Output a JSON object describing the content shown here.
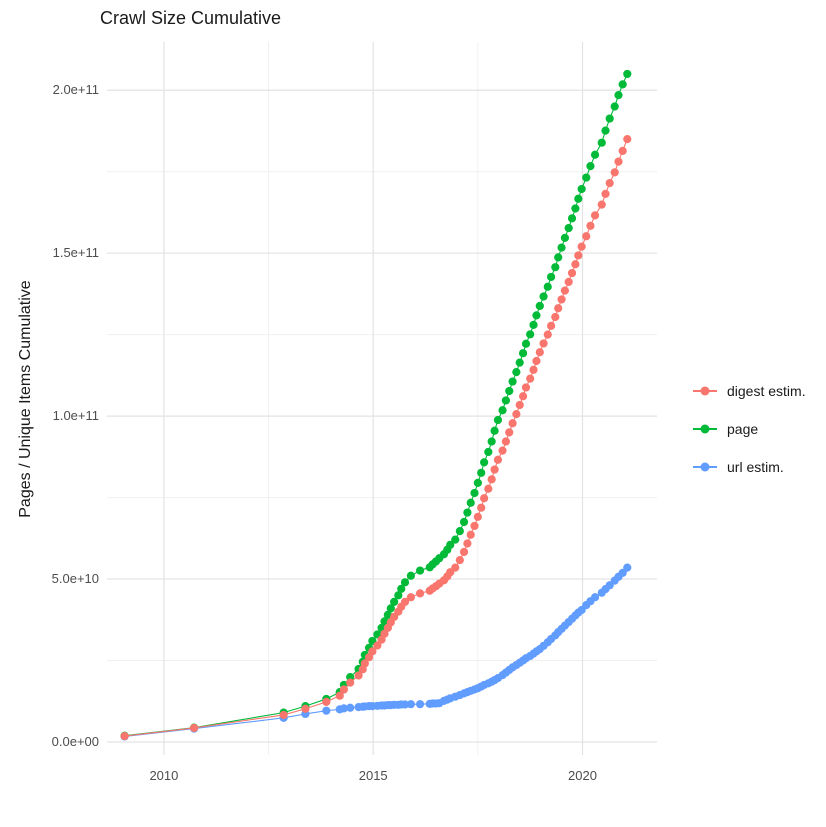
{
  "title": "Crawl Size Cumulative",
  "y_axis_title": "Pages / Unique Items Cumulative",
  "legend": {
    "position": "right",
    "items": [
      {
        "label": "digest estim.",
        "color": "#F8766D"
      },
      {
        "label": "page",
        "color": "#00BA38"
      },
      {
        "label": "url estim.",
        "color": "#619CFF"
      }
    ]
  },
  "chart_data": {
    "type": "scatter",
    "title": "Crawl Size Cumulative",
    "xlabel": "",
    "ylabel": "Pages / Unique Items Cumulative",
    "xlim": [
      2008.64,
      2021.78
    ],
    "ylim": [
      -4000000000.0,
      214800000000.0
    ],
    "grid": true,
    "legend_position": "right",
    "grid_color_major": "#e3e3e3",
    "grid_color_minor": "#f0f0f0",
    "x_ticks": [
      {
        "value": 2010,
        "label": "2010"
      },
      {
        "value": 2015,
        "label": "2015"
      },
      {
        "value": 2020,
        "label": "2020"
      }
    ],
    "x_minor_values": [
      2012.5,
      2017.5
    ],
    "y_ticks": [
      {
        "value": 0,
        "label": "0.0e+00"
      },
      {
        "value": 50000000000.0,
        "label": "5.0e+10"
      },
      {
        "value": 100000000000.0,
        "label": "1.0e+11"
      },
      {
        "value": 150000000000.0,
        "label": "1.5e+11"
      },
      {
        "value": 200000000000.0,
        "label": "2.0e+11"
      }
    ],
    "y_minor_values": [
      25000000000.0,
      75000000000.0,
      125000000000.0,
      175000000000.0
    ],
    "series": [
      {
        "name": "digest estim.",
        "color": "#F8766D",
        "points": [
          [
            2009.06,
            1800000000.0
          ],
          [
            2010.72,
            4300000000.0
          ],
          [
            2012.86,
            8300000000.0
          ],
          [
            2013.38,
            10200000000.0
          ],
          [
            2013.88,
            12300000000.0
          ],
          [
            2014.2,
            14200000000.0
          ],
          [
            2014.3,
            16100000000.0
          ],
          [
            2014.45,
            18200000000.0
          ],
          [
            2014.65,
            20400000000.0
          ],
          [
            2014.75,
            22300000000.0
          ],
          [
            2014.8,
            24100000000.0
          ],
          [
            2014.9,
            26000000000.0
          ],
          [
            2014.98,
            27800000000.0
          ],
          [
            2015.1,
            29600000000.0
          ],
          [
            2015.2,
            31400000000.0
          ],
          [
            2015.27,
            33200000000.0
          ],
          [
            2015.35,
            35000000000.0
          ],
          [
            2015.42,
            36700000000.0
          ],
          [
            2015.5,
            38400000000.0
          ],
          [
            2015.6,
            40000000000.0
          ],
          [
            2015.67,
            41500000000.0
          ],
          [
            2015.76,
            43000000000.0
          ],
          [
            2015.9,
            44400000000.0
          ],
          [
            2016.12,
            45600000000.0
          ],
          [
            2016.35,
            46400000000.0
          ],
          [
            2016.42,
            47100000000.0
          ],
          [
            2016.5,
            47800000000.0
          ],
          [
            2016.58,
            48600000000.0
          ],
          [
            2016.69,
            49600000000.0
          ],
          [
            2016.77,
            50800000000.0
          ],
          [
            2016.84,
            52100000000.0
          ],
          [
            2016.96,
            53500000000.0
          ],
          [
            2017.07,
            55800000000.0
          ],
          [
            2017.17,
            58300000000.0
          ],
          [
            2017.25,
            60900000000.0
          ],
          [
            2017.33,
            63600000000.0
          ],
          [
            2017.42,
            66300000000.0
          ],
          [
            2017.5,
            69100000000.0
          ],
          [
            2017.58,
            71900000000.0
          ],
          [
            2017.65,
            74800000000.0
          ],
          [
            2017.75,
            77700000000.0
          ],
          [
            2017.83,
            80600000000.0
          ],
          [
            2017.9,
            83600000000.0
          ],
          [
            2017.98,
            86600000000.0
          ],
          [
            2018.09,
            89400000000.0
          ],
          [
            2018.17,
            92200000000.0
          ],
          [
            2018.25,
            95000000000.0
          ],
          [
            2018.33,
            97800000000.0
          ],
          [
            2018.42,
            100600000000.0
          ],
          [
            2018.5,
            103400000000.0
          ],
          [
            2018.58,
            106100000000.0
          ],
          [
            2018.65,
            108800000000.0
          ],
          [
            2018.75,
            111500000000.0
          ],
          [
            2018.83,
            114200000000.0
          ],
          [
            2018.9,
            116900000000.0
          ],
          [
            2018.98,
            119600000000.0
          ],
          [
            2019.07,
            122300000000.0
          ],
          [
            2019.17,
            125000000000.0
          ],
          [
            2019.25,
            127700000000.0
          ],
          [
            2019.35,
            130400000000.0
          ],
          [
            2019.42,
            133100000000.0
          ],
          [
            2019.5,
            135800000000.0
          ],
          [
            2019.58,
            138500000000.0
          ],
          [
            2019.67,
            141200000000.0
          ],
          [
            2019.75,
            143900000000.0
          ],
          [
            2019.83,
            146600000000.0
          ],
          [
            2019.9,
            149300000000.0
          ],
          [
            2019.98,
            152000000000.0
          ],
          [
            2020.09,
            155200000000.0
          ],
          [
            2020.19,
            158400000000.0
          ],
          [
            2020.3,
            161600000000.0
          ],
          [
            2020.46,
            164900000000.0
          ],
          [
            2020.55,
            168200000000.0
          ],
          [
            2020.65,
            171500000000.0
          ],
          [
            2020.77,
            174800000000.0
          ],
          [
            2020.86,
            178100000000.0
          ],
          [
            2020.96,
            181400000000.0
          ],
          [
            2021.07,
            185000000000.0
          ]
        ]
      },
      {
        "name": "page",
        "color": "#00BA38",
        "points": [
          [
            2009.06,
            1900000000.0
          ],
          [
            2010.72,
            4400000000.0
          ],
          [
            2012.86,
            9000000000.0
          ],
          [
            2013.38,
            11000000000.0
          ],
          [
            2013.88,
            13200000000.0
          ],
          [
            2014.2,
            15300000000.0
          ],
          [
            2014.3,
            17500000000.0
          ],
          [
            2014.45,
            19900000000.0
          ],
          [
            2014.65,
            22400000000.0
          ],
          [
            2014.75,
            24600000000.0
          ],
          [
            2014.8,
            26700000000.0
          ],
          [
            2014.9,
            28900000000.0
          ],
          [
            2014.98,
            31000000000.0
          ],
          [
            2015.1,
            33000000000.0
          ],
          [
            2015.2,
            35000000000.0
          ],
          [
            2015.27,
            37000000000.0
          ],
          [
            2015.35,
            39000000000.0
          ],
          [
            2015.42,
            41000000000.0
          ],
          [
            2015.5,
            43000000000.0
          ],
          [
            2015.6,
            45000000000.0
          ],
          [
            2015.67,
            47000000000.0
          ],
          [
            2015.76,
            49000000000.0
          ],
          [
            2015.9,
            51000000000.0
          ],
          [
            2016.12,
            52600000000.0
          ],
          [
            2016.35,
            53600000000.0
          ],
          [
            2016.42,
            54500000000.0
          ],
          [
            2016.5,
            55400000000.0
          ],
          [
            2016.58,
            56400000000.0
          ],
          [
            2016.69,
            57600000000.0
          ],
          [
            2016.77,
            59000000000.0
          ],
          [
            2016.84,
            60500000000.0
          ],
          [
            2016.96,
            62100000000.0
          ],
          [
            2017.07,
            64700000000.0
          ],
          [
            2017.17,
            67500000000.0
          ],
          [
            2017.25,
            70400000000.0
          ],
          [
            2017.33,
            73400000000.0
          ],
          [
            2017.42,
            76400000000.0
          ],
          [
            2017.5,
            79500000000.0
          ],
          [
            2017.58,
            82600000000.0
          ],
          [
            2017.65,
            85800000000.0
          ],
          [
            2017.75,
            89000000000.0
          ],
          [
            2017.83,
            92200000000.0
          ],
          [
            2017.9,
            95500000000.0
          ],
          [
            2017.98,
            98800000000.0
          ],
          [
            2018.09,
            101800000000.0
          ],
          [
            2018.17,
            104800000000.0
          ],
          [
            2018.25,
            107700000000.0
          ],
          [
            2018.33,
            110600000000.0
          ],
          [
            2018.42,
            113500000000.0
          ],
          [
            2018.5,
            116400000000.0
          ],
          [
            2018.58,
            119300000000.0
          ],
          [
            2018.65,
            122200000000.0
          ],
          [
            2018.75,
            125100000000.0
          ],
          [
            2018.83,
            128000000000.0
          ],
          [
            2018.9,
            130900000000.0
          ],
          [
            2018.98,
            133800000000.0
          ],
          [
            2019.07,
            136700000000.0
          ],
          [
            2019.17,
            139700000000.0
          ],
          [
            2019.25,
            142700000000.0
          ],
          [
            2019.35,
            145700000000.0
          ],
          [
            2019.42,
            148700000000.0
          ],
          [
            2019.5,
            151700000000.0
          ],
          [
            2019.58,
            154700000000.0
          ],
          [
            2019.67,
            157700000000.0
          ],
          [
            2019.75,
            160700000000.0
          ],
          [
            2019.83,
            163700000000.0
          ],
          [
            2019.9,
            166700000000.0
          ],
          [
            2019.98,
            169700000000.0
          ],
          [
            2020.09,
            173200000000.0
          ],
          [
            2020.19,
            176700000000.0
          ],
          [
            2020.3,
            180200000000.0
          ],
          [
            2020.46,
            183900000000.0
          ],
          [
            2020.55,
            187600000000.0
          ],
          [
            2020.65,
            191300000000.0
          ],
          [
            2020.77,
            195000000000.0
          ],
          [
            2020.86,
            198500000000.0
          ],
          [
            2020.96,
            201800000000.0
          ],
          [
            2021.07,
            205000000000.0
          ]
        ]
      },
      {
        "name": "url estim.",
        "color": "#619CFF",
        "points": [
          [
            2009.06,
            1700000000.0
          ],
          [
            2010.72,
            4100000000.0
          ],
          [
            2012.86,
            7400000000.0
          ],
          [
            2013.38,
            8600000000.0
          ],
          [
            2013.88,
            9600000000.0
          ],
          [
            2014.2,
            10000000000.0
          ],
          [
            2014.3,
            10300000000.0
          ],
          [
            2014.45,
            10500000000.0
          ],
          [
            2014.65,
            10700000000.0
          ],
          [
            2014.75,
            10800000000.0
          ],
          [
            2014.8,
            10900000000.0
          ],
          [
            2014.9,
            11000000000.0
          ],
          [
            2014.98,
            11000000000.0
          ],
          [
            2015.1,
            11100000000.0
          ],
          [
            2015.2,
            11200000000.0
          ],
          [
            2015.27,
            11200000000.0
          ],
          [
            2015.35,
            11300000000.0
          ],
          [
            2015.42,
            11300000000.0
          ],
          [
            2015.5,
            11400000000.0
          ],
          [
            2015.6,
            11400000000.0
          ],
          [
            2015.67,
            11500000000.0
          ],
          [
            2015.76,
            11500000000.0
          ],
          [
            2015.9,
            11600000000.0
          ],
          [
            2016.12,
            11600000000.0
          ],
          [
            2016.35,
            11700000000.0
          ],
          [
            2016.42,
            11800000000.0
          ],
          [
            2016.5,
            11800000000.0
          ],
          [
            2016.58,
            11900000000.0
          ],
          [
            2016.69,
            12600000000.0
          ],
          [
            2016.77,
            13000000000.0
          ],
          [
            2016.84,
            13400000000.0
          ],
          [
            2016.96,
            13900000000.0
          ],
          [
            2017.07,
            14400000000.0
          ],
          [
            2017.17,
            14900000000.0
          ],
          [
            2017.25,
            15300000000.0
          ],
          [
            2017.33,
            15700000000.0
          ],
          [
            2017.42,
            16100000000.0
          ],
          [
            2017.5,
            16500000000.0
          ],
          [
            2017.58,
            17000000000.0
          ],
          [
            2017.65,
            17500000000.0
          ],
          [
            2017.75,
            18000000000.0
          ],
          [
            2017.83,
            18500000000.0
          ],
          [
            2017.9,
            19000000000.0
          ],
          [
            2017.98,
            19600000000.0
          ],
          [
            2018.09,
            20500000000.0
          ],
          [
            2018.17,
            21300000000.0
          ],
          [
            2018.25,
            22100000000.0
          ],
          [
            2018.33,
            22900000000.0
          ],
          [
            2018.42,
            23600000000.0
          ],
          [
            2018.5,
            24300000000.0
          ],
          [
            2018.58,
            25000000000.0
          ],
          [
            2018.65,
            25700000000.0
          ],
          [
            2018.75,
            26400000000.0
          ],
          [
            2018.83,
            27100000000.0
          ],
          [
            2018.9,
            27800000000.0
          ],
          [
            2018.98,
            28500000000.0
          ],
          [
            2019.07,
            29500000000.0
          ],
          [
            2019.17,
            30600000000.0
          ],
          [
            2019.25,
            31600000000.0
          ],
          [
            2019.35,
            32700000000.0
          ],
          [
            2019.42,
            33700000000.0
          ],
          [
            2019.5,
            34700000000.0
          ],
          [
            2019.58,
            35700000000.0
          ],
          [
            2019.67,
            36800000000.0
          ],
          [
            2019.75,
            37800000000.0
          ],
          [
            2019.83,
            38800000000.0
          ],
          [
            2019.9,
            39700000000.0
          ],
          [
            2019.98,
            40500000000.0
          ],
          [
            2020.09,
            42000000000.0
          ],
          [
            2020.19,
            43200000000.0
          ],
          [
            2020.3,
            44400000000.0
          ],
          [
            2020.46,
            45800000000.0
          ],
          [
            2020.55,
            46900000000.0
          ],
          [
            2020.65,
            48100000000.0
          ],
          [
            2020.77,
            49500000000.0
          ],
          [
            2020.86,
            50700000000.0
          ],
          [
            2020.96,
            51900000000.0
          ],
          [
            2021.07,
            53500000000.0
          ]
        ]
      }
    ]
  }
}
